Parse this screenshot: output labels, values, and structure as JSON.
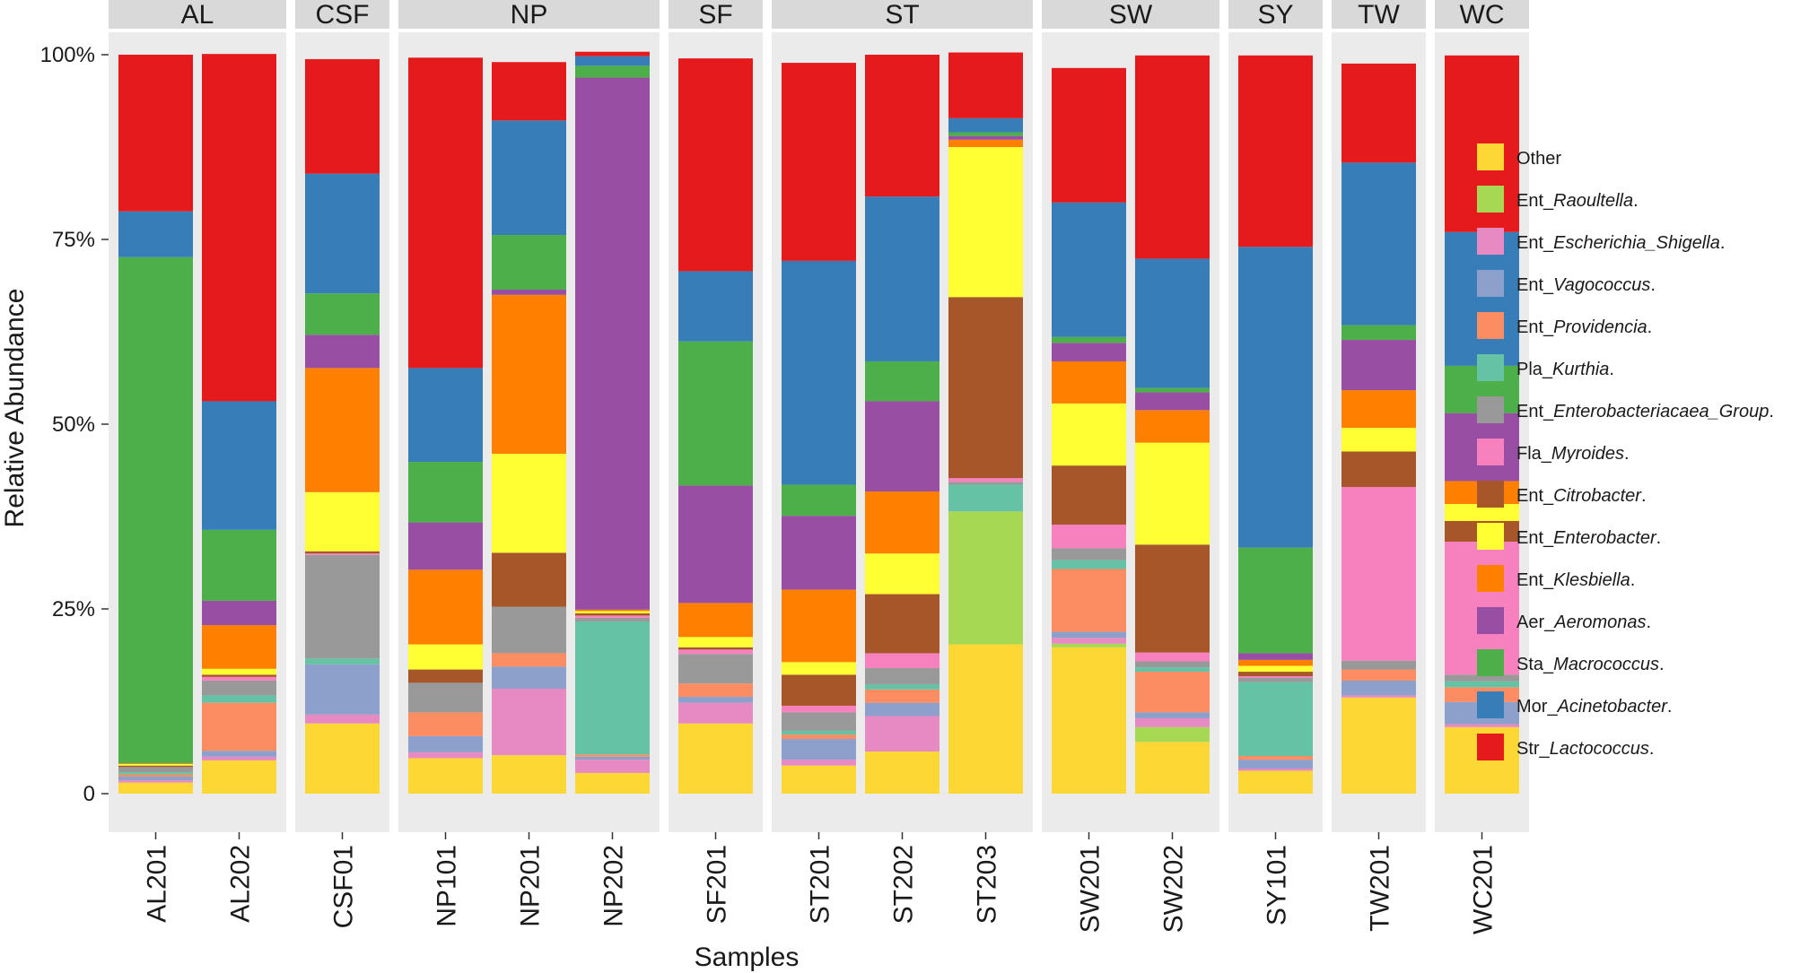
{
  "chart_data": {
    "type": "bar",
    "stacked": true,
    "title": "",
    "xlabel": "Samples",
    "ylabel": "Relative Abundance",
    "ylim": [
      0,
      100
    ],
    "y_ticks": [
      {
        "value": 0,
        "label": "0"
      },
      {
        "value": 25,
        "label": "25%"
      },
      {
        "value": 50,
        "label": "50%"
      },
      {
        "value": 75,
        "label": "75%"
      },
      {
        "value": 100,
        "label": "100%"
      }
    ],
    "legend_position": "right",
    "facets": [
      {
        "label": "AL",
        "samples": [
          "AL201",
          "AL202"
        ]
      },
      {
        "label": "CSF",
        "samples": [
          "CSF01"
        ]
      },
      {
        "label": "NP",
        "samples": [
          "NP101",
          "NP201",
          "NP202"
        ]
      },
      {
        "label": "SF",
        "samples": [
          "SF201"
        ]
      },
      {
        "label": "ST",
        "samples": [
          "ST201",
          "ST202",
          "ST203"
        ]
      },
      {
        "label": "SW",
        "samples": [
          "SW201",
          "SW202"
        ]
      },
      {
        "label": "SY",
        "samples": [
          "SY101"
        ]
      },
      {
        "label": "TW",
        "samples": [
          "TW201"
        ]
      },
      {
        "label": "WC",
        "samples": [
          "WC201"
        ]
      }
    ],
    "categories": [
      "AL201",
      "AL202",
      "CSF01",
      "NP101",
      "NP201",
      "NP202",
      "SF201",
      "ST201",
      "ST202",
      "ST203",
      "SW201",
      "SW202",
      "SY101",
      "TW201",
      "WC201"
    ],
    "series": [
      {
        "name": "Other",
        "prefix": "",
        "genus": "",
        "color": "#fdd835",
        "values": [
          1.5,
          4.5,
          9.5,
          4.8,
          5.2,
          2.8,
          9.5,
          3.8,
          5.7,
          20.2,
          19.8,
          7.0,
          3.1,
          13.0,
          9.0
        ]
      },
      {
        "name": "Ent_Raoultella.",
        "prefix": "Ent_",
        "genus": "Raoultella",
        "color": "#a6d854",
        "values": [
          0.0,
          0.0,
          0.0,
          0.0,
          0.0,
          0.0,
          0.0,
          0.0,
          0.0,
          18.0,
          0.5,
          2.0,
          0.0,
          0.0,
          0.0
        ]
      },
      {
        "name": "Ent_Escherichia_Shigella.",
        "prefix": "Ent_",
        "genus": "Escherichia_Shigella",
        "color": "#e78ac3",
        "values": [
          0.3,
          0.5,
          1.2,
          0.8,
          9.0,
          1.8,
          2.8,
          0.8,
          4.8,
          0.0,
          0.8,
          1.2,
          0.3,
          0.3,
          0.4
        ]
      },
      {
        "name": "Ent_Vagococcus.",
        "prefix": "Ent_",
        "genus": "Vagococcus",
        "color": "#8da0cb",
        "values": [
          0.5,
          0.8,
          6.8,
          2.2,
          3.0,
          0.4,
          0.8,
          2.8,
          1.8,
          0.0,
          0.8,
          0.8,
          1.2,
          2.0,
          3.0
        ]
      },
      {
        "name": "Ent_Providencia.",
        "prefix": "Ent_",
        "genus": "Providencia",
        "color": "#fc8d62",
        "values": [
          0.3,
          6.5,
          0.0,
          3.2,
          1.8,
          0.3,
          1.8,
          0.6,
          1.8,
          0.0,
          8.5,
          5.5,
          0.5,
          1.5,
          2.0
        ]
      },
      {
        "name": "Pla_Kurthia.",
        "prefix": "Pla_",
        "genus": "Kurthia",
        "color": "#66c2a5",
        "values": [
          0.3,
          1.0,
          0.8,
          0.0,
          0.0,
          18.0,
          0.0,
          0.5,
          0.7,
          3.6,
          1.2,
          0.6,
          10.0,
          0.0,
          0.8
        ]
      },
      {
        "name": "Ent_Enterobacteriacaea_Group.",
        "prefix": "Ent_",
        "genus": "Enterobacteriacaea_Group",
        "color": "#999999",
        "values": [
          0.7,
          2.0,
          14.0,
          4.0,
          6.3,
          0.5,
          4.0,
          2.5,
          2.2,
          0.4,
          1.6,
          0.8,
          0.6,
          1.2,
          0.9
        ]
      },
      {
        "name": "Fla_Myroides.",
        "prefix": "Fla_",
        "genus": "Myroides",
        "color": "#f781bf",
        "values": [
          0.0,
          0.5,
          0.2,
          0.0,
          0.0,
          0.3,
          0.6,
          0.9,
          2.0,
          0.5,
          3.2,
          1.2,
          0.2,
          23.5,
          18.0
        ]
      },
      {
        "name": "Ent_Citrobacter.",
        "prefix": "Ent_",
        "genus": "Citrobacter",
        "color": "#a65628",
        "values": [
          0.2,
          0.3,
          0.3,
          1.8,
          7.3,
          0.3,
          0.3,
          4.2,
          8.0,
          24.5,
          8.0,
          14.6,
          0.6,
          4.8,
          2.8
        ]
      },
      {
        "name": "Ent_Enterobacter.",
        "prefix": "Ent_",
        "genus": "Enterobacter",
        "color": "#ffff33",
        "values": [
          0.2,
          0.8,
          8.0,
          3.4,
          13.4,
          0.3,
          1.4,
          1.7,
          5.5,
          20.3,
          8.4,
          13.8,
          0.8,
          3.2,
          2.3
        ]
      },
      {
        "name": "Ent_Klesbiella.",
        "prefix": "Ent_",
        "genus": "Klesbiella",
        "color": "#ff7f00",
        "values": [
          0.1,
          5.9,
          16.8,
          10.1,
          21.5,
          0.2,
          4.6,
          9.8,
          8.4,
          1.0,
          5.7,
          4.4,
          0.8,
          5.1,
          3.1
        ]
      },
      {
        "name": "Aer_Aeromonas.",
        "prefix": "Aer_",
        "genus": "Aeromonas",
        "color": "#984ea3",
        "values": [
          0.0,
          3.3,
          4.5,
          6.4,
          0.7,
          72.0,
          15.9,
          10.0,
          12.2,
          0.5,
          2.5,
          2.4,
          0.9,
          6.8,
          9.2
        ]
      },
      {
        "name": "Sta_Macrococcus.",
        "prefix": "Sta_",
        "genus": "Macrococcus",
        "color": "#4daf4a",
        "values": [
          68.5,
          9.6,
          5.6,
          8.2,
          7.4,
          1.6,
          19.5,
          4.2,
          5.4,
          0.5,
          0.8,
          0.6,
          14.3,
          2.0,
          6.4
        ]
      },
      {
        "name": "Mor_Acinetobacter.",
        "prefix": "Mor_",
        "genus": "Acinetobacter",
        "color": "#377eb8",
        "values": [
          6.2,
          17.4,
          16.2,
          12.7,
          15.5,
          1.3,
          9.5,
          30.3,
          22.3,
          1.9,
          18.2,
          17.5,
          40.7,
          22.0,
          18.1
        ]
      },
      {
        "name": "Str_Lactococcus.",
        "prefix": "Str_",
        "genus": "Lactococcus",
        "color": "#e41a1c",
        "values": [
          21.2,
          47.0,
          15.5,
          42.0,
          7.9,
          0.6,
          28.8,
          26.8,
          19.2,
          8.9,
          18.2,
          27.5,
          25.9,
          13.4,
          23.9
        ]
      }
    ]
  }
}
